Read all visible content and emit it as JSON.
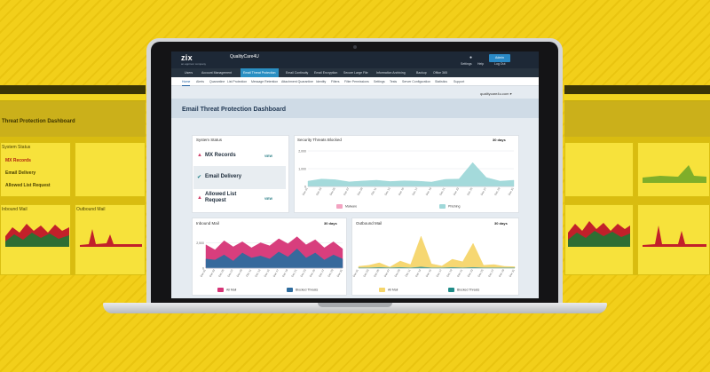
{
  "colors": {
    "background": "#f4d21c",
    "topbar": "#1d2836",
    "nav_active": "#2a8fc2",
    "threat_teal": "#9fd8d9",
    "threat_pink": "#f3a3c1",
    "inbound_pink": "#d63476",
    "inbound_blue": "#2e6c9e",
    "outbound_yellow": "#f5d56a",
    "outbound_teal": "#1f8c88"
  },
  "app": {
    "logo": "zix",
    "logo_sub": "an appriver company",
    "account_name": "QualityCare4U",
    "account_email": "",
    "settings_label": "Settings",
    "help_label": "Help",
    "logout_label": "Log Out",
    "admin_badge": "Admin"
  },
  "nav_primary": [
    {
      "label": "Users"
    },
    {
      "label": "Account Management"
    },
    {
      "label": "Email Threat Protection",
      "active": true
    },
    {
      "label": "Email Continuity"
    },
    {
      "label": "Email Encryption"
    },
    {
      "label": "Secure Large File"
    },
    {
      "label": "Information Archiving"
    },
    {
      "label": "Backup"
    },
    {
      "label": "Office 365"
    }
  ],
  "nav_secondary": [
    {
      "label": "Home",
      "active": true
    },
    {
      "label": "Alerts"
    },
    {
      "label": "Quarantine"
    },
    {
      "label": "List Protection"
    },
    {
      "label": "Message Retention"
    },
    {
      "label": "Attachment Quarantine"
    },
    {
      "label": "Identity"
    },
    {
      "label": "Filters"
    },
    {
      "label": "Filter Permissions"
    },
    {
      "label": "Settings"
    },
    {
      "label": "Tests"
    },
    {
      "label": "Server Configuration"
    },
    {
      "label": "Statistics"
    },
    {
      "label": "Support"
    }
  ],
  "domain_selector": "qualitycare4u.com ▾",
  "page_title": "Email Threat Protection Dashboard",
  "system_status": {
    "title": "System Status",
    "rows": [
      {
        "label": "MX Records",
        "icon": "warning-icon",
        "view": "VIEW",
        "selected": false
      },
      {
        "label": "Email Delivery",
        "icon": "check-icon",
        "view": "",
        "selected": true
      },
      {
        "label": "Allowed List Request",
        "icon": "warning-icon",
        "view": "VIEW",
        "selected": false
      }
    ]
  },
  "panels": {
    "threats": {
      "title": "Security Threats Blocked",
      "days": "30 days"
    },
    "inbound": {
      "title": "Inbound Mail",
      "days": "30 days"
    },
    "outbound": {
      "title": "Outbound Mail",
      "days": "30 days"
    }
  },
  "chart_data": [
    {
      "type": "area",
      "title": "Security Threats Blocked",
      "categories": [
        "Dec 01",
        "Dec 03",
        "Dec 05",
        "Dec 07",
        "Dec 09",
        "Dec 11",
        "Dec 13",
        "Dec 15",
        "Dec 17",
        "Dec 19",
        "Dec 21",
        "Dec 23",
        "Dec 25",
        "Dec 27",
        "Dec 29",
        "Dec 31"
      ],
      "y_ticks": [
        0,
        1000,
        2000
      ],
      "ylim": [
        0,
        2200
      ],
      "series": [
        {
          "name": "Malware",
          "color": "#f3a3c1",
          "values": [
            20,
            15,
            25,
            18,
            20,
            22,
            15,
            20,
            18,
            25,
            20,
            15,
            22,
            18,
            20,
            15
          ]
        },
        {
          "name": "Phishing",
          "color": "#9fd8d9",
          "values": [
            300,
            420,
            380,
            260,
            310,
            350,
            280,
            320,
            300,
            250,
            400,
            420,
            1350,
            500,
            300,
            350
          ]
        }
      ],
      "legend": "bottom"
    },
    {
      "type": "area",
      "title": "Inbound Mail",
      "categories": [
        "Dec 01",
        "Dec 03",
        "Dec 05",
        "Dec 07",
        "Dec 09",
        "Dec 11",
        "Dec 13",
        "Dec 15",
        "Dec 17",
        "Dec 19",
        "Dec 21",
        "Dec 23",
        "Dec 25",
        "Dec 27",
        "Dec 29",
        "Dec 31"
      ],
      "y_ticks": [
        0,
        2500
      ],
      "ylim": [
        0,
        3500
      ],
      "series": [
        {
          "name": "All Mail",
          "color": "#d63476",
          "values": [
            2300,
            1800,
            2700,
            2100,
            2600,
            2000,
            2500,
            2200,
            2900,
            2400,
            3100,
            2300,
            2800,
            2000,
            2600,
            1900
          ]
        },
        {
          "name": "Blocked Threats",
          "color": "#2e6c9e",
          "values": [
            900,
            800,
            1300,
            700,
            1500,
            1000,
            1200,
            900,
            1600,
            1100,
            1900,
            1000,
            1500,
            800,
            1300,
            900
          ]
        }
      ],
      "legend": "bottom"
    },
    {
      "type": "area",
      "title": "Outbound Mail",
      "categories": [
        "Dec 01",
        "Dec 03",
        "Dec 05",
        "Dec 07",
        "Dec 09",
        "Dec 11",
        "Dec 13",
        "Dec 15",
        "Dec 17",
        "Dec 19",
        "Dec 21",
        "Dec 23",
        "Dec 25",
        "Dec 27",
        "Dec 29",
        "Dec 31"
      ],
      "y_ticks": [],
      "ylim": [
        0,
        100
      ],
      "series": [
        {
          "name": "All Mail",
          "color": "#f5d56a",
          "values": [
            5,
            8,
            15,
            3,
            20,
            10,
            90,
            12,
            6,
            25,
            18,
            70,
            8,
            10,
            5,
            4
          ]
        },
        {
          "name": "Blocked Threats",
          "color": "#1f8c88",
          "values": [
            1,
            1,
            2,
            1,
            2,
            1,
            3,
            1,
            1,
            2,
            1,
            2,
            1,
            1,
            1,
            1
          ]
        }
      ],
      "legend": "bottom"
    }
  ],
  "side_panels": {
    "left_title": "Threat Protection Dashboard",
    "left_rows": [
      "System Status",
      "MX Records",
      "Email Delivery",
      "Allowed List Request"
    ],
    "left_inbound": "Inbound Mail",
    "left_outbound": "Outbound Mail"
  }
}
